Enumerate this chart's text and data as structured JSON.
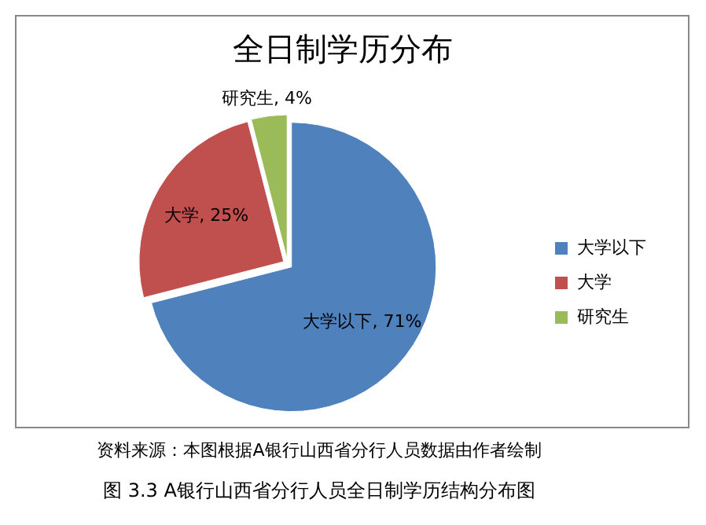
{
  "chart_data": {
    "type": "pie",
    "title": "全日制学历分布",
    "categories": [
      "大学以下",
      "大学",
      "研究生"
    ],
    "values": [
      71,
      25,
      4
    ],
    "value_labels": [
      "大学以下, 71%",
      "大学, 25%",
      "研究生, 4%"
    ],
    "colors": [
      "#4f81bd",
      "#c0504d",
      "#9bbb59"
    ],
    "legend": "right",
    "annotations": [
      "资料来源：本图根据A银行山西省分行人员数据由作者绘制",
      "图 3.3 A银行山西省分行人员全日制学历结构分布图"
    ]
  }
}
